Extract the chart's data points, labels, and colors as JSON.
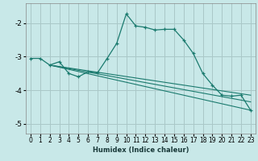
{
  "xlabel": "Humidex (Indice chaleur)",
  "line_color": "#1a7a6e",
  "bg_color": "#c8e8e8",
  "grid_color": "#aac8c8",
  "xlim": [
    -0.5,
    23.5
  ],
  "ylim": [
    -5.3,
    -1.4
  ],
  "yticks": [
    -5,
    -4,
    -3,
    -2
  ],
  "xticks": [
    0,
    1,
    2,
    3,
    4,
    5,
    6,
    7,
    8,
    9,
    10,
    11,
    12,
    13,
    14,
    15,
    16,
    17,
    18,
    19,
    20,
    21,
    22,
    23
  ],
  "series": [
    [
      0,
      -3.05
    ],
    [
      1,
      -3.05
    ],
    [
      2,
      -3.25
    ],
    [
      3,
      -3.15
    ],
    [
      4,
      -3.5
    ],
    [
      5,
      -3.6
    ],
    [
      6,
      -3.45
    ],
    [
      7,
      -3.48
    ],
    [
      8,
      -3.05
    ],
    [
      9,
      -2.6
    ],
    [
      10,
      -1.72
    ],
    [
      11,
      -2.08
    ],
    [
      12,
      -2.12
    ],
    [
      13,
      -2.2
    ],
    [
      14,
      -2.18
    ],
    [
      15,
      -2.18
    ],
    [
      16,
      -2.5
    ],
    [
      17,
      -2.9
    ],
    [
      18,
      -3.5
    ],
    [
      19,
      -3.85
    ],
    [
      20,
      -4.15
    ],
    [
      21,
      -4.18
    ],
    [
      22,
      -4.15
    ],
    [
      23,
      -4.6
    ]
  ],
  "trend1_x": [
    2,
    23
  ],
  "trend1_y": [
    -3.25,
    -4.6
  ],
  "trend2_x": [
    2,
    23
  ],
  "trend2_y": [
    -3.25,
    -4.35
  ],
  "trend3_x": [
    2,
    23
  ],
  "trend3_y": [
    -3.25,
    -4.15
  ]
}
